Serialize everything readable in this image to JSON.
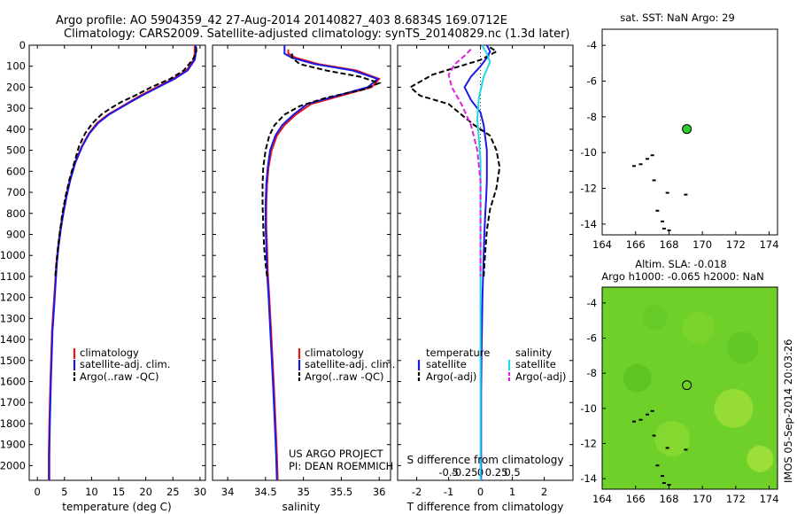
{
  "header": {
    "line1": "Argo profile: AO 5904359_42 27-Aug-2014 20140827_403 8.6834S 169.0712E",
    "line2": "Climatology: CARS2009. Satellite-adjusted climatology: synTS_20140829.nc (1.3d later)"
  },
  "colors": {
    "climatology": "#e8141e",
    "satellite": "#1a1ae6",
    "argo": "#000000",
    "sat_salinity": "#22d8e8",
    "argo_adj_salinity": "#e020e0",
    "land_dots": "#000000",
    "argo_marker": "#2ecc2e",
    "map_fill": "#6fd02a"
  },
  "depth_axis": {
    "ticks": [
      "0",
      "100",
      "200",
      "300",
      "400",
      "500",
      "600",
      "700",
      "800",
      "900",
      "1000",
      "1100",
      "1200",
      "1300",
      "1400",
      "1500",
      "1600",
      "1700",
      "1800",
      "1900",
      "2000"
    ],
    "range": [
      0,
      2070
    ]
  },
  "chart_data": [
    {
      "type": "line",
      "xlabel": "temperature (deg C)",
      "xticks": [
        "0",
        "5",
        "10",
        "15",
        "20",
        "25",
        "30"
      ],
      "xlim": [
        -1.5,
        31
      ],
      "legend": [
        "climatology",
        "satellite-adj. clim.",
        "Argo(..raw -QC)"
      ],
      "series": [
        {
          "name": "climatology",
          "color": "#e8141e",
          "x": [
            29.0,
            29.0,
            28.8,
            27.5,
            25,
            22,
            19,
            17,
            15,
            13,
            11,
            9.5,
            8.2,
            6.9,
            6.0,
            5.3,
            4.7,
            4.2,
            3.8,
            3.5,
            3.3,
            3.1,
            2.9,
            2.7,
            2.6,
            2.5,
            2.4,
            2.3,
            2.2,
            2.1,
            2.1
          ],
          "y": [
            0,
            40,
            70,
            120,
            160,
            200,
            240,
            270,
            300,
            330,
            370,
            420,
            480,
            560,
            640,
            720,
            800,
            880,
            960,
            1040,
            1120,
            1200,
            1280,
            1360,
            1440,
            1520,
            1600,
            1700,
            1800,
            1950,
            2070
          ]
        },
        {
          "name": "satellite-adj. clim.",
          "color": "#1a1ae6",
          "x": [
            29.2,
            29.2,
            29.0,
            27.7,
            25.3,
            22.3,
            19.3,
            17.2,
            15.2,
            13.2,
            11.2,
            9.6,
            8.3,
            7.0,
            6.1,
            5.4,
            4.8,
            4.3,
            3.9,
            3.6,
            3.4,
            3.2,
            3.0,
            2.8,
            2.7,
            2.6,
            2.5,
            2.4,
            2.3,
            2.2,
            2.2
          ],
          "y": [
            0,
            40,
            70,
            120,
            160,
            200,
            240,
            270,
            300,
            330,
            370,
            420,
            480,
            560,
            640,
            720,
            800,
            880,
            960,
            1040,
            1120,
            1200,
            1280,
            1360,
            1440,
            1520,
            1600,
            1700,
            1800,
            1950,
            2070
          ]
        },
        {
          "name": "Argo(..raw -QC)",
          "color": "#000000",
          "dash": true,
          "x": [
            29.3,
            29.3,
            28.6,
            27.0,
            24.5,
            21.0,
            18.0,
            15.5,
            13.5,
            11.8,
            10.2,
            8.8,
            7.7,
            6.8,
            5.9,
            5.2,
            4.6,
            4.2,
            3.8,
            3.5,
            3.3
          ],
          "y": [
            10,
            40,
            70,
            120,
            160,
            200,
            240,
            270,
            300,
            330,
            370,
            420,
            480,
            560,
            640,
            720,
            800,
            880,
            960,
            1040,
            1100
          ]
        }
      ]
    },
    {
      "type": "line",
      "xlabel": "salinity",
      "xticks": [
        "34",
        "34.5",
        "35",
        "35.5",
        "36"
      ],
      "xlim": [
        33.8,
        36.15
      ],
      "legend": [
        "climatology",
        "satellite-adj. clim.",
        "Argo(..raw -QC)"
      ],
      "series": [
        {
          "name": "climatology",
          "color": "#e8141e",
          "x": [
            34.8,
            34.8,
            34.9,
            35.2,
            35.7,
            36.0,
            35.9,
            35.5,
            35.1,
            34.9,
            34.75,
            34.65,
            34.58,
            34.54,
            34.52,
            34.51,
            34.51,
            34.52,
            34.53,
            34.55,
            34.57,
            34.59,
            34.61,
            34.63,
            34.65,
            34.66
          ],
          "y": [
            20,
            40,
            60,
            90,
            120,
            160,
            200,
            240,
            280,
            330,
            380,
            430,
            500,
            580,
            660,
            760,
            860,
            960,
            1080,
            1200,
            1340,
            1480,
            1620,
            1780,
            1950,
            2070
          ]
        },
        {
          "name": "satellite-adj. clim.",
          "color": "#1a1ae6",
          "x": [
            34.75,
            34.75,
            34.85,
            35.15,
            35.65,
            35.98,
            35.85,
            35.45,
            35.05,
            34.87,
            34.72,
            34.63,
            34.56,
            34.53,
            34.51,
            34.5,
            34.5,
            34.51,
            34.52,
            34.54,
            34.56,
            34.58,
            34.6,
            34.62,
            34.64,
            34.65
          ],
          "y": [
            0,
            40,
            60,
            90,
            120,
            160,
            200,
            240,
            280,
            330,
            380,
            430,
            500,
            580,
            660,
            760,
            860,
            960,
            1080,
            1200,
            1340,
            1480,
            1620,
            1780,
            1950,
            2070
          ]
        },
        {
          "name": "Argo(..raw -QC)",
          "color": "#000000",
          "dash": true,
          "x": [
            34.85,
            34.85,
            34.95,
            35.3,
            35.75,
            36.0,
            35.8,
            35.3,
            34.95,
            34.75,
            34.62,
            34.55,
            34.5,
            34.47,
            34.46,
            34.46,
            34.47,
            34.48,
            34.5,
            34.52
          ],
          "y": [
            40,
            60,
            90,
            120,
            150,
            180,
            210,
            250,
            290,
            330,
            380,
            430,
            500,
            580,
            660,
            760,
            860,
            960,
            1040,
            1100
          ]
        }
      ]
    },
    {
      "type": "line",
      "xlabel": "T difference from climatology",
      "xlabel2": "S difference from climatology",
      "xticks": [
        "-2",
        "-1",
        "0",
        "1",
        "2"
      ],
      "xticks2": [
        "-0.5",
        "-0.25",
        "0",
        "0.25",
        "0.5"
      ],
      "xlim": [
        -2.6,
        2.9
      ],
      "legend_groups": [
        {
          "title": "temperature",
          "items": [
            "satellite",
            "Argo(-adj)"
          ]
        },
        {
          "title": "salinity",
          "items": [
            "satellite",
            "Argo(-adj)"
          ]
        }
      ],
      "series": [
        {
          "name": "satellite",
          "group": "temperature",
          "color": "#1a1ae6",
          "x": [
            0.2,
            0.3,
            0.2,
            0.0,
            -0.3,
            -0.5,
            -0.3,
            0.0,
            0.1,
            0.15,
            0.2,
            0.2,
            0.2,
            0.18,
            0.15,
            0.12,
            0.1,
            0.08,
            0.06,
            0.05,
            0.04,
            0.03,
            0.02,
            0.02,
            0.02,
            0.02
          ],
          "y": [
            0,
            30,
            60,
            100,
            150,
            200,
            260,
            320,
            380,
            440,
            500,
            560,
            640,
            720,
            800,
            900,
            1000,
            1100,
            1200,
            1300,
            1400,
            1500,
            1650,
            1800,
            1950,
            2070
          ]
        },
        {
          "name": "Argo(-adj)",
          "group": "temperature",
          "color": "#000000",
          "dash": true,
          "x": [
            0.3,
            0.5,
            0.0,
            -1.5,
            -2.2,
            -1.9,
            -1.0,
            -0.6,
            -0.2,
            0.3,
            0.5,
            0.6,
            0.5,
            0.3,
            0.2,
            0.15,
            0.1
          ],
          "y": [
            10,
            30,
            70,
            140,
            200,
            240,
            280,
            330,
            380,
            430,
            500,
            580,
            680,
            780,
            880,
            980,
            1100
          ]
        },
        {
          "name": "satellite",
          "group": "salinity",
          "color": "#22d8e8",
          "x": [
            0.05,
            0.2,
            0.3,
            0.1,
            -0.05,
            -0.1,
            -0.05,
            0.0,
            0.0,
            0.0,
            0.0,
            0.0,
            0.0,
            0.0,
            0.0
          ],
          "y": [
            0,
            40,
            80,
            150,
            250,
            350,
            450,
            550,
            700,
            900,
            1100,
            1400,
            1700,
            1950,
            2070
          ]
        },
        {
          "name": "Argo(-adj)",
          "group": "salinity",
          "color": "#e020e0",
          "dash": true,
          "x": [
            -0.3,
            -0.5,
            -0.8,
            -1.0,
            -0.9,
            -0.6,
            -0.3,
            -0.1,
            0.0,
            0.0,
            0.0,
            0.0
          ],
          "y": [
            20,
            50,
            90,
            140,
            200,
            280,
            380,
            500,
            650,
            800,
            950,
            1100
          ]
        }
      ]
    }
  ],
  "annotation": {
    "line1": "US ARGO PROJECT",
    "line2": "PI: DEAN ROEMMICH"
  },
  "map1": {
    "title": "sat. SST: NaN Argo: 29",
    "xticks": [
      "164",
      "166",
      "168",
      "170",
      "172",
      "174"
    ],
    "yticks": [
      "-4",
      "-6",
      "-8",
      "-10",
      "-12",
      "-14"
    ],
    "xlim": [
      164,
      174.5
    ],
    "ylim": [
      -14.6,
      -3.1
    ],
    "argo_position": {
      "lon": 169.07,
      "lat": -8.68
    }
  },
  "map2": {
    "title_line1": "Altim. SLA: -0.018",
    "title_line2": "Argo h1000: -0.065 h2000: NaN",
    "xticks": [
      "164",
      "166",
      "168",
      "170",
      "172",
      "174"
    ],
    "yticks": [
      "-4",
      "-6",
      "-8",
      "-10",
      "-12",
      "-14"
    ],
    "xlim": [
      164,
      174.5
    ],
    "ylim": [
      -14.6,
      -3.1
    ],
    "argo_position": {
      "lon": 169.07,
      "lat": -8.68
    }
  },
  "footer_stamp": "IMOS 05-Sep-2014 20:03:26",
  "islands": [
    {
      "lon": 165.8,
      "lat": -10.7
    },
    {
      "lon": 166.6,
      "lat": -10.3
    },
    {
      "lon": 167.0,
      "lat": -11.5
    },
    {
      "lon": 166.9,
      "lat": -10.1
    },
    {
      "lon": 167.8,
      "lat": -12.2
    },
    {
      "lon": 167.2,
      "lat": -13.2
    },
    {
      "lon": 167.5,
      "lat": -13.8
    },
    {
      "lon": 167.6,
      "lat": -14.2
    },
    {
      "lon": 167.9,
      "lat": -14.3
    },
    {
      "lon": 168.9,
      "lat": -12.3
    },
    {
      "lon": 166.2,
      "lat": -10.6
    }
  ]
}
